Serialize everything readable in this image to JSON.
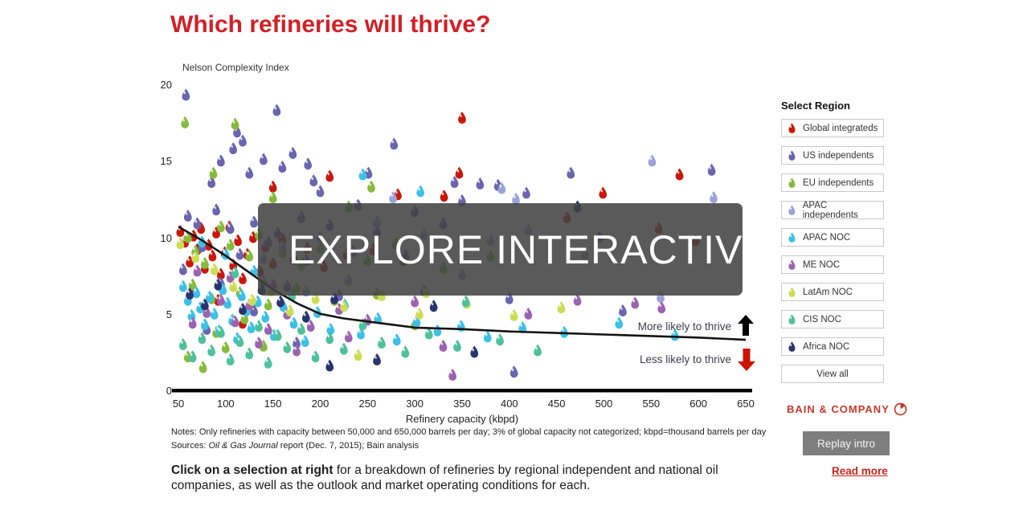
{
  "page": {
    "title": "Which refineries will thrive?"
  },
  "overlay": {
    "label": "EXPLORE INTERACTIVE",
    "icon": "arrow-right-circle"
  },
  "footer": {
    "notes": "Notes: Only refineries with capacity between 50,000 and 650,000 barrels per day; 3% of global capacity not categorized; kbpd=thousand barrels per day",
    "sources_prefix": "Sources: ",
    "sources_italic": "Oil & Gas Journal",
    "sources_suffix": " report (Dec. 7, 2015); Bain analysis"
  },
  "caption": {
    "bold": "Click on a selection at right",
    "rest": " for a breakdown of refineries by regional independent and national oil companies, as well as the outlook and market operating conditions for each."
  },
  "sidebar": {
    "header": "Select Region",
    "logo": "BAIN & COMPANY",
    "replay_label": "Replay intro",
    "read_more_label": "Read more",
    "buttons": [
      {
        "label": "Global integrateds",
        "color": "#c8180d"
      },
      {
        "label": "US independents",
        "color": "#6b64ae"
      },
      {
        "label": "EU independents",
        "color": "#85ba3c"
      },
      {
        "label": "APAC independents",
        "color": "#9ba4d8"
      },
      {
        "label": "APAC NOC",
        "color": "#3dc0e6"
      },
      {
        "label": "ME NOC",
        "color": "#9c63b0"
      },
      {
        "label": "LatAm NOC",
        "color": "#ccdd55"
      },
      {
        "label": "CIS NOC",
        "color": "#4fc09c"
      },
      {
        "label": "Africa NOC",
        "color": "#28356d"
      },
      {
        "label": "View all"
      }
    ]
  },
  "chart_data": {
    "type": "scatter",
    "title": "Which refineries will thrive?",
    "marker": "droplet",
    "y_axis": {
      "label": "Nelson Complexity Index",
      "ticks": [
        0,
        5,
        10,
        15,
        20
      ],
      "range": [
        0,
        20
      ]
    },
    "x_axis": {
      "label": "Refinery capacity (kbpd)",
      "ticks": [
        50,
        100,
        150,
        200,
        250,
        300,
        350,
        400,
        450,
        500,
        550,
        600,
        650
      ],
      "range": [
        50,
        650
      ]
    },
    "trend_line": {
      "color": "#141414",
      "points": [
        [
          50,
          10.7
        ],
        [
          75,
          9.8
        ],
        [
          100,
          8.8
        ],
        [
          125,
          7.7
        ],
        [
          150,
          6.6
        ],
        [
          175,
          5.7
        ],
        [
          200,
          5.0
        ],
        [
          225,
          4.7
        ],
        [
          250,
          4.5
        ],
        [
          300,
          4.1
        ],
        [
          350,
          4.0
        ],
        [
          400,
          3.85
        ],
        [
          450,
          3.75
        ],
        [
          500,
          3.65
        ],
        [
          550,
          3.55
        ],
        [
          600,
          3.45
        ],
        [
          650,
          3.3
        ]
      ]
    },
    "annotations": [
      {
        "text": "More likely to thrive",
        "arrow": "up",
        "arrow_color": "#000000"
      },
      {
        "text": "Less likely to thrive",
        "arrow": "down",
        "arrow_color": "#cc1405"
      }
    ],
    "series": [
      {
        "name": "Global integrateds",
        "color": "#c8180d",
        "points": [
          [
            350,
            17.8
          ],
          [
            347,
            14.2
          ],
          [
            282,
            12.8
          ],
          [
            331,
            12.7
          ],
          [
            580,
            14.1
          ],
          [
            499,
            12.9
          ],
          [
            461,
            11.3
          ],
          [
            558,
            10.6
          ],
          [
            597,
            9.8
          ],
          [
            210,
            14.0
          ],
          [
            150,
            13.3
          ],
          [
            52,
            10.4
          ],
          [
            57,
            9.7
          ],
          [
            62,
            8.4
          ],
          [
            66,
            10.1
          ],
          [
            70,
            9.2
          ],
          [
            74,
            10.6
          ],
          [
            78,
            8.0
          ],
          [
            82,
            9.5
          ],
          [
            86,
            8.8
          ],
          [
            90,
            10.3
          ],
          [
            95,
            7.6
          ],
          [
            99,
            9.0
          ],
          [
            104,
            10.7
          ],
          [
            108,
            8.2
          ],
          [
            113,
            9.8
          ],
          [
            118,
            7.3
          ],
          [
            123,
            8.9
          ],
          [
            129,
            10.0
          ],
          [
            136,
            7.8
          ],
          [
            142,
            9.4
          ],
          [
            150,
            8.3
          ],
          [
            160,
            9.9
          ],
          [
            172,
            8.6
          ],
          [
            186,
            9.3
          ],
          [
            204,
            8.1
          ],
          [
            228,
            8.9
          ],
          [
            256,
            9.2
          ],
          [
            288,
            8.5
          ],
          [
            92,
            5.9
          ],
          [
            118,
            4.4
          ],
          [
            66,
            6.6
          ]
        ]
      },
      {
        "name": "US independents",
        "color": "#6b64ae",
        "points": [
          [
            58,
            19.3
          ],
          [
            154,
            18.3
          ],
          [
            112,
            16.9
          ],
          [
            118,
            16.3
          ],
          [
            108,
            15.8
          ],
          [
            140,
            15.1
          ],
          [
            160,
            14.6
          ],
          [
            171,
            15.5
          ],
          [
            187,
            14.8
          ],
          [
            193,
            13.7
          ],
          [
            251,
            14.2
          ],
          [
            278,
            16.1
          ],
          [
            342,
            13.6
          ],
          [
            369,
            13.5
          ],
          [
            388,
            13.4
          ],
          [
            418,
            12.9
          ],
          [
            465,
            14.2
          ],
          [
            614,
            14.4
          ],
          [
            125,
            14.2
          ],
          [
            95,
            15.0
          ],
          [
            85,
            13.6
          ],
          [
            350,
            12.4
          ],
          [
            300,
            11.7
          ],
          [
            240,
            12.1
          ],
          [
            200,
            13.0
          ],
          [
            180,
            11.3
          ],
          [
            90,
            11.8
          ],
          [
            70,
            10.9
          ],
          [
            60,
            11.4
          ],
          [
            105,
            10.6
          ],
          [
            130,
            11.0
          ],
          [
            155,
            10.3
          ],
          [
            210,
            10.8
          ],
          [
            260,
            10.4
          ],
          [
            330,
            10.9
          ],
          [
            495,
            10.0
          ],
          [
            75,
            9.4
          ],
          [
            115,
            8.9
          ],
          [
            145,
            9.7
          ],
          [
            185,
            8.5
          ],
          [
            235,
            9.1
          ],
          [
            290,
            8.8
          ],
          [
            55,
            7.9
          ],
          [
            95,
            7.0
          ],
          [
            165,
            6.8
          ],
          [
            220,
            6.2
          ],
          [
            310,
            6.5
          ],
          [
            400,
            6.0
          ],
          [
            130,
            5.2
          ],
          [
            80,
            4.0
          ],
          [
            175,
            3.1
          ],
          [
            520,
            5.2
          ],
          [
            405,
            1.2
          ]
        ]
      },
      {
        "name": "EU independents",
        "color": "#85ba3c",
        "points": [
          [
            57,
            17.5
          ],
          [
            110,
            17.4
          ],
          [
            254,
            13.3
          ],
          [
            87,
            14.2
          ],
          [
            150,
            12.6
          ],
          [
            230,
            12.0
          ],
          [
            95,
            10.7
          ],
          [
            60,
            10.0
          ],
          [
            68,
            9.1
          ],
          [
            78,
            8.3
          ],
          [
            105,
            9.5
          ],
          [
            125,
            8.8
          ],
          [
            135,
            10.2
          ],
          [
            160,
            9.0
          ],
          [
            180,
            8.2
          ],
          [
            200,
            9.3
          ],
          [
            250,
            8.5
          ],
          [
            280,
            9.6
          ],
          [
            330,
            8.0
          ],
          [
            380,
            8.8
          ],
          [
            65,
            6.9
          ],
          [
            85,
            6.0
          ],
          [
            115,
            6.4
          ],
          [
            145,
            5.6
          ],
          [
            175,
            6.7
          ],
          [
            215,
            5.9
          ],
          [
            260,
            6.3
          ],
          [
            120,
            4.7
          ],
          [
            90,
            3.8
          ],
          [
            140,
            2.9
          ],
          [
            60,
            2.2
          ],
          [
            76,
            1.5
          ],
          [
            100,
            2.8
          ],
          [
            300,
            4.3
          ]
        ]
      },
      {
        "name": "APAC independents",
        "color": "#9ba4d8",
        "points": [
          [
            551,
            15.0
          ],
          [
            277,
            12.6
          ],
          [
            392,
            13.2
          ],
          [
            407,
            12.5
          ],
          [
            616,
            12.6
          ],
          [
            420,
            10.5
          ],
          [
            380,
            9.8
          ],
          [
            310,
            10.2
          ],
          [
            260,
            11.0
          ],
          [
            200,
            10.0
          ],
          [
            160,
            9.4
          ],
          [
            140,
            8.6
          ],
          [
            480,
            8.9
          ],
          [
            350,
            7.6
          ],
          [
            230,
            7.2
          ],
          [
            185,
            6.5
          ],
          [
            560,
            6.1
          ]
        ]
      },
      {
        "name": "APAC NOC",
        "color": "#3dc0e6",
        "points": [
          [
            245,
            14.1
          ],
          [
            306,
            13.0
          ],
          [
            55,
            6.8
          ],
          [
            60,
            5.9
          ],
          [
            64,
            4.9
          ],
          [
            69,
            6.4
          ],
          [
            73,
            5.4
          ],
          [
            78,
            4.3
          ],
          [
            83,
            6.1
          ],
          [
            88,
            5.0
          ],
          [
            93,
            3.9
          ],
          [
            97,
            6.6
          ],
          [
            102,
            5.7
          ],
          [
            107,
            4.6
          ],
          [
            112,
            3.4
          ],
          [
            117,
            6.2
          ],
          [
            122,
            5.2
          ],
          [
            127,
            4.1
          ],
          [
            134,
            5.8
          ],
          [
            142,
            4.8
          ],
          [
            151,
            3.6
          ],
          [
            161,
            5.5
          ],
          [
            172,
            4.4
          ],
          [
            184,
            3.2
          ],
          [
            197,
            5.1
          ],
          [
            211,
            4.0
          ],
          [
            226,
            5.6
          ],
          [
            243,
            3.7
          ],
          [
            261,
            4.7
          ],
          [
            281,
            3.3
          ],
          [
            302,
            4.5
          ],
          [
            324,
            3.9
          ],
          [
            349,
            4.2
          ],
          [
            377,
            3.5
          ],
          [
            414,
            4.1
          ],
          [
            458,
            3.8
          ],
          [
            516,
            4.4
          ],
          [
            575,
            3.6
          ],
          [
            100,
            8.9
          ],
          [
            130,
            7.8
          ],
          [
            75,
            9.7
          ]
        ]
      },
      {
        "name": "ME NOC",
        "color": "#9c63b0",
        "points": [
          [
            561,
            5.4
          ],
          [
            533,
            5.7
          ],
          [
            472,
            5.9
          ],
          [
            420,
            5.0
          ],
          [
            300,
            5.8
          ],
          [
            250,
            4.6
          ],
          [
            220,
            5.3
          ],
          [
            190,
            4.2
          ],
          [
            165,
            5.0
          ],
          [
            145,
            4.0
          ],
          [
            125,
            5.6
          ],
          [
            110,
            4.5
          ],
          [
            95,
            5.9
          ],
          [
            80,
            5.1
          ],
          [
            65,
            4.4
          ],
          [
            135,
            3.1
          ],
          [
            175,
            2.6
          ],
          [
            230,
            3.5
          ],
          [
            330,
            2.9
          ],
          [
            105,
            7.4
          ],
          [
            150,
            6.9
          ],
          [
            70,
            7.8
          ],
          [
            340,
            1.0
          ]
        ]
      },
      {
        "name": "LatAm NOC",
        "color": "#ccdd55",
        "points": [
          [
            52,
            9.6
          ],
          [
            68,
            8.7
          ],
          [
            88,
            7.9
          ],
          [
            108,
            6.8
          ],
          [
            128,
            5.9
          ],
          [
            148,
            6.5
          ],
          [
            168,
            5.2
          ],
          [
            195,
            6.0
          ],
          [
            225,
            5.5
          ],
          [
            265,
            6.2
          ],
          [
            305,
            5.0
          ],
          [
            355,
            5.7
          ],
          [
            405,
            4.9
          ],
          [
            455,
            5.4
          ],
          [
            240,
            2.3
          ],
          [
            312,
            6.4
          ]
        ]
      },
      {
        "name": "CIS NOC",
        "color": "#4fc09c",
        "points": [
          [
            55,
            3.0
          ],
          [
            65,
            2.2
          ],
          [
            75,
            3.4
          ],
          [
            85,
            2.6
          ],
          [
            95,
            3.8
          ],
          [
            105,
            2.0
          ],
          [
            115,
            3.2
          ],
          [
            125,
            2.4
          ],
          [
            135,
            4.2
          ],
          [
            145,
            1.8
          ],
          [
            155,
            3.6
          ],
          [
            165,
            2.8
          ],
          [
            180,
            4.0
          ],
          [
            195,
            2.2
          ],
          [
            210,
            3.4
          ],
          [
            225,
            2.7
          ],
          [
            245,
            4.3
          ],
          [
            265,
            3.1
          ],
          [
            290,
            2.5
          ],
          [
            315,
            3.7
          ],
          [
            345,
            2.9
          ],
          [
            390,
            3.3
          ],
          [
            430,
            2.6
          ],
          [
            170,
            6.2
          ],
          [
            140,
            7.1
          ],
          [
            110,
            7.7
          ],
          [
            354,
            5.8
          ]
        ]
      },
      {
        "name": "Africa NOC",
        "color": "#28356d",
        "points": [
          [
            472,
            12.0
          ],
          [
            62,
            6.3
          ],
          [
            78,
            5.6
          ],
          [
            92,
            6.9
          ],
          [
            118,
            5.3
          ],
          [
            138,
            6.6
          ],
          [
            158,
            5.8
          ],
          [
            185,
            4.8
          ],
          [
            215,
            6.0
          ],
          [
            320,
            5.5
          ],
          [
            260,
            2.0
          ],
          [
            210,
            1.6
          ],
          [
            363,
            2.5
          ]
        ]
      }
    ]
  }
}
